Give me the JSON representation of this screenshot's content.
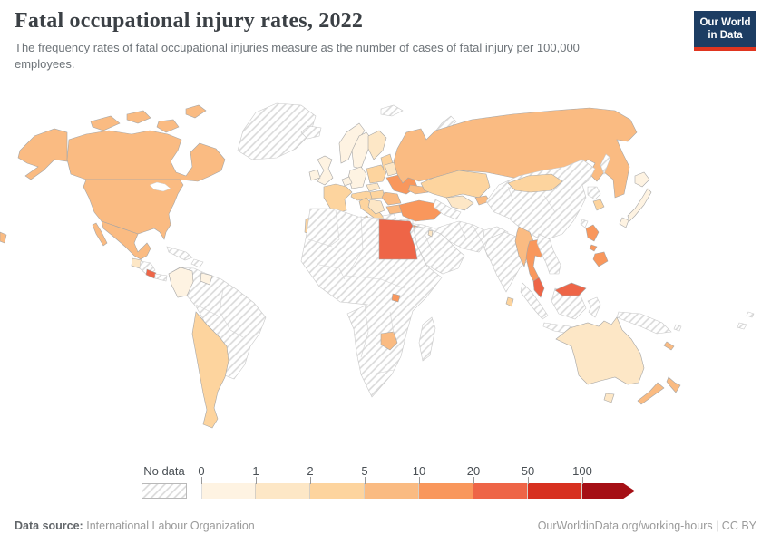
{
  "header": {
    "title": "Fatal occupational injury rates, 2022",
    "subtitle": "The frequency rates of fatal occupational injuries measure as the number of cases of fatal injury per 100,000 employees.",
    "logo": {
      "line1": "Our World",
      "line2": "in Data",
      "bg_color": "#1d3d63",
      "accent_color": "#e0351f"
    }
  },
  "legend": {
    "no_data_label": "No data",
    "ticks": [
      "0",
      "1",
      "2",
      "5",
      "10",
      "20",
      "50",
      "100"
    ],
    "bin_colors": [
      "#fef3e2",
      "#fde7c6",
      "#fdd49e",
      "#fabb82",
      "#f9975c",
      "#ee6547",
      "#d7301f",
      "#a50f15"
    ]
  },
  "chart_data": {
    "type": "choropleth",
    "title": "Fatal occupational injury rates, 2022",
    "unit": "fatal injuries per 100,000 employees",
    "bins": [
      "0-1",
      "1-2",
      "2-5",
      "5-10",
      "10-20",
      "20-50",
      "50-100",
      "100+"
    ],
    "no_data_style": "diagonal-hatch",
    "legend_position": "bottom",
    "countries_by_bin": {
      "0-1": [
        "Colombia",
        "Guyana",
        "Norway",
        "Sweden",
        "Denmark",
        "United Kingdom",
        "Ireland",
        "Germany",
        "Netherlands",
        "Japan"
      ],
      "1-2": [
        "Guatemala",
        "Finland",
        "Spain",
        "Czechia",
        "Belarus",
        "Uzbekistan",
        "Australia",
        "Qatar"
      ],
      "2-5": [
        "Argentina",
        "Chile",
        "France",
        "Portugal",
        "Italy",
        "Poland",
        "Baltic states",
        "Austria",
        "Switzerland",
        "Hungary",
        "Kazakhstan",
        "Mongolia",
        "South Korea",
        "Sri Lanka"
      ],
      "5-10": [
        "Canada",
        "United States",
        "Mexico",
        "Russia",
        "Romania",
        "Bulgaria",
        "Caucasus",
        "Kyrgyzstan",
        "Myanmar",
        "Zimbabwe",
        "New Zealand",
        "New Caledonia"
      ],
      "10-20": [
        "Ukraine",
        "Turkey",
        "Thailand",
        "Philippines",
        "Israel",
        "Rwanda"
      ],
      "20-50": [
        "Egypt",
        "Costa Rica",
        "Malaysia"
      ],
      "50-100": [],
      "100+": []
    },
    "no_data_examples": [
      "Brazil",
      "Peru",
      "Venezuela",
      "Greenland",
      "most of Africa",
      "Saudi Arabia",
      "Iran",
      "India",
      "China",
      "Indonesia",
      "Papua New Guinea",
      "Greece"
    ]
  },
  "map": {
    "ocean_color": "#ffffff",
    "regions": {
      "alaska": 3,
      "canada": 3,
      "arctic-island-1": 3,
      "arctic-island-2": 3,
      "arctic-island-3": 3,
      "arctic-island-4": 3,
      "usa": 3,
      "mexico": 3,
      "baja": 3,
      "guatemala": 1,
      "honduras-nicaragua": -1,
      "costa-rica": 5,
      "panama": -1,
      "cuba": -1,
      "hispaniola": -1,
      "greenland": -1,
      "iceland": -1,
      "svalbard": -1,
      "novaya-zemlya": -1,
      "colombia": 0,
      "guyana": 0,
      "south-america": -1,
      "argentina-chile": 2,
      "norway": 0,
      "sweden": 0,
      "finland": 1,
      "denmark": 0,
      "uk": 0,
      "ireland": 0,
      "france": 2,
      "spain": 1,
      "portugal": 2,
      "germany": 0,
      "benelux": 0,
      "czech": 1,
      "austria-switzerland": 2,
      "italy": 2,
      "sardinia": 2,
      "sicily": 2,
      "poland": 2,
      "baltics": 2,
      "belarus": 1,
      "ukraine": 4,
      "romania": 3,
      "hungary": 2,
      "balkans": 1,
      "bulgaria": 3,
      "greece": -1,
      "turkey": 4,
      "cyprus": 4,
      "russia": 3,
      "russia-wrap": 3,
      "sakhalin": -1,
      "caucasus": 3,
      "kazakhstan": 2,
      "uzbekistan": 1,
      "turkmenistan": -1,
      "kyrgyzstan": 3,
      "levant-iran": -1,
      "arabia": -1,
      "israel": 4,
      "qatar": 1,
      "afghanistan-pakistan": -1,
      "india": -1,
      "sri-lanka": 2,
      "china": -1,
      "mongolia": 2,
      "north-korea": -1,
      "south-korea": 2,
      "japan-hokkaido": 0,
      "japan-honshu": 0,
      "japan-kyushu": 0,
      "taiwan": -1,
      "myanmar": 3,
      "thailand": 4,
      "indochina": -1,
      "malaysia-peninsula": 5,
      "malaysia-borneo": 5,
      "indonesia-borneo": -1,
      "sumatra": -1,
      "java": -1,
      "sulawesi": -1,
      "timor": -1,
      "new-guinea": -1,
      "philippines-luzon": 4,
      "philippines-visayas": 4,
      "philippines-mindanao": 4,
      "africa": -1,
      "madagascar": -1,
      "egypt": 5,
      "zimbabwe": 3,
      "rwanda": 4,
      "australia": 1,
      "tasmania": 1,
      "new-zealand-north": 3,
      "new-zealand-south": 3,
      "new-caledonia": 3,
      "solomon": -1,
      "fiji": -1,
      "vanuatu": -1
    }
  },
  "footer": {
    "source_label": "Data source:",
    "source_value": "International Labour Organization",
    "link_text": "OurWorldinData.org/working-hours | CC BY"
  }
}
